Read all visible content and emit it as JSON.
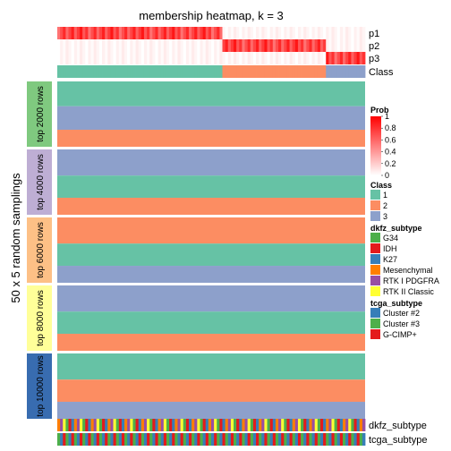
{
  "chart_data": {
    "type": "heatmap",
    "title": "membership heatmap, k = 3",
    "ylabel": "50 x 5 random samplings",
    "n_samples": 110,
    "prob_rows": [
      {
        "label": "p1",
        "color": "#ff0000"
      },
      {
        "label": "p2",
        "color": "#ff0000"
      },
      {
        "label": "p3",
        "color": "#ff0000"
      }
    ],
    "class_row_label": "Class",
    "class_colors": {
      "1": "#66c2a5",
      "2": "#fc8d62",
      "3": "#8da0cb"
    },
    "sample_class_runs": [
      {
        "class": "1",
        "count": 59
      },
      {
        "class": "2",
        "count": 37
      },
      {
        "class": "3",
        "count": 14
      }
    ],
    "groups": [
      {
        "label": "top 2000 rows",
        "color": "#7fc97f",
        "blocks": [
          {
            "class": "1",
            "frac": 0.38
          },
          {
            "class": "3",
            "frac": 0.36
          },
          {
            "class": "2",
            "frac": 0.26
          }
        ]
      },
      {
        "label": "top 4000 rows",
        "color": "#beaed4",
        "blocks": [
          {
            "class": "3",
            "frac": 0.4
          },
          {
            "class": "1",
            "frac": 0.34
          },
          {
            "class": "2",
            "frac": 0.26
          }
        ]
      },
      {
        "label": "top 6000 rows",
        "color": "#fdc086",
        "blocks": [
          {
            "class": "2",
            "frac": 0.4
          },
          {
            "class": "1",
            "frac": 0.34
          },
          {
            "class": "3",
            "frac": 0.26
          }
        ]
      },
      {
        "label": "top 8000 rows",
        "color": "#ffff99",
        "blocks": [
          {
            "class": "3",
            "frac": 0.4
          },
          {
            "class": "1",
            "frac": 0.34
          },
          {
            "class": "2",
            "frac": 0.26
          }
        ]
      },
      {
        "label": "top 10000 rows",
        "color": "#386cb0",
        "blocks": [
          {
            "class": "1",
            "frac": 0.4
          },
          {
            "class": "2",
            "frac": 0.34
          },
          {
            "class": "3",
            "frac": 0.26
          }
        ]
      }
    ],
    "annotation_rows": [
      {
        "label": "dkfz_subtype",
        "key": "dkfz"
      },
      {
        "label": "tcga_subtype",
        "key": "tcga"
      }
    ],
    "legends": {
      "prob": {
        "title": "Prob",
        "ticks": [
          "1",
          "0.8",
          "0.6",
          "0.4",
          "0.2",
          "0"
        ]
      },
      "class": {
        "title": "Class",
        "items": [
          {
            "label": "1",
            "color": "#66c2a5"
          },
          {
            "label": "2",
            "color": "#fc8d62"
          },
          {
            "label": "3",
            "color": "#8da0cb"
          }
        ]
      },
      "dkfz": {
        "title": "dkfz_subtype",
        "items": [
          {
            "label": "G34",
            "color": "#4daf4a"
          },
          {
            "label": "IDH",
            "color": "#e41a1c"
          },
          {
            "label": "K27",
            "color": "#377eb8"
          },
          {
            "label": "Mesenchymal",
            "color": "#ff7f00"
          },
          {
            "label": "RTK I PDGFRA",
            "color": "#984ea3"
          },
          {
            "label": "RTK II Classic",
            "color": "#ffff33"
          }
        ]
      },
      "tcga": {
        "title": "tcga_subtype",
        "items": [
          {
            "label": "Cluster #2",
            "color": "#377eb8"
          },
          {
            "label": "Cluster #3",
            "color": "#4daf4a"
          },
          {
            "label": "G-CIMP+",
            "color": "#e41a1c"
          }
        ]
      }
    }
  }
}
